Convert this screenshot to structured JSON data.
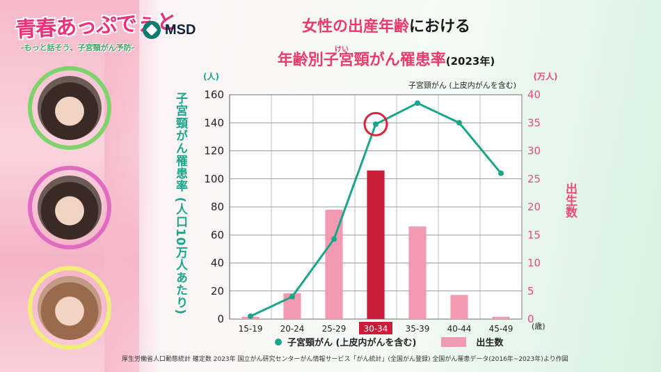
{
  "branding": {
    "show_title": "青春あっぷでぇと",
    "show_subtitle": "-もっと話そう、子宮頸がん予防-",
    "sponsor": "MSD"
  },
  "title": {
    "line1_pink": "女性の出産年齢",
    "line1_dark": "における",
    "line2_pink": "年齢別子宮頸がん罹患率",
    "line2_dark": "(2023年)",
    "furigana": "けい"
  },
  "axes": {
    "left_unit": "(人)",
    "right_unit": "(万人)",
    "left_label": "子宮頸がん罹患率 (人口10万人あたり)",
    "right_label": "出生数",
    "right_series_title": "子宮頸がん (上皮内がんを含む)",
    "x_unit": "(歳)"
  },
  "legend": {
    "line": "子宮頸がん (上皮内がんを含む)",
    "bar": "出生数"
  },
  "source": "厚生労働省人口動態統計 確定数 2023年 国立がん研究センターがん情報サービス「がん統計」(全国がん登録) 全国がん罹患データ(2016年~2023年)より作図",
  "colors": {
    "line": "#1aa58a",
    "bar": "#f39ab2",
    "highlight_bar": "#c81e3a",
    "highlight_circle": "#d8233e",
    "left_axis": "#1aa58a",
    "right_axis": "#e84c76"
  },
  "chart_data": {
    "type": "bar",
    "categories": [
      "15-19",
      "20-24",
      "25-29",
      "30-34",
      "35-39",
      "40-44",
      "45-49"
    ],
    "highlight_category": "30-34",
    "series": [
      {
        "name": "出生数",
        "type": "bar",
        "axis": "right",
        "values": [
          0.4,
          4.6,
          19.5,
          26.5,
          16.5,
          4.3,
          0.4
        ]
      },
      {
        "name": "子宮頸がん (上皮内がんを含む)",
        "type": "line",
        "axis": "left",
        "values": [
          2,
          16,
          57,
          139,
          154,
          140,
          104
        ]
      }
    ],
    "left_ylim": [
      0,
      160
    ],
    "left_ticks": [
      0,
      20,
      40,
      60,
      80,
      100,
      120,
      140,
      160
    ],
    "right_ylim": [
      0,
      40
    ],
    "right_ticks": [
      0,
      5,
      10,
      15,
      20,
      25,
      30,
      35,
      40
    ],
    "grid": true,
    "legend": "bottom"
  }
}
